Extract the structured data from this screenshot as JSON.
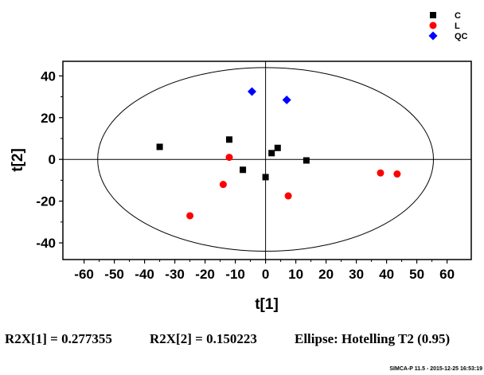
{
  "chart_data": {
    "type": "scatter",
    "xlabel": "t[1]",
    "ylabel": "t[2]",
    "xlim": [
      -67,
      68
    ],
    "ylim": [
      -48,
      47
    ],
    "xticks": [
      -60,
      -50,
      -40,
      -30,
      -20,
      -10,
      0,
      10,
      20,
      30,
      40,
      50,
      60
    ],
    "yticks": [
      -40,
      -20,
      0,
      20,
      40
    ],
    "grid": false,
    "legend_position": "top-right",
    "ellipse": {
      "center": [
        0,
        0
      ],
      "semi_x": 55.5,
      "semi_y": 44
    },
    "series": [
      {
        "name": "C",
        "color": "#000000",
        "marker": "square",
        "points": [
          [
            -35,
            6
          ],
          [
            -12,
            9.5
          ],
          [
            -7.5,
            -5
          ],
          [
            0,
            -8.5
          ],
          [
            2,
            3
          ],
          [
            4,
            5.5
          ],
          [
            13.5,
            -0.5
          ]
        ]
      },
      {
        "name": "L",
        "color": "#ff0000",
        "marker": "circle",
        "points": [
          [
            -25,
            -27
          ],
          [
            -14,
            -12
          ],
          [
            -12,
            1
          ],
          [
            7.5,
            -17.5
          ],
          [
            38,
            -6.5
          ],
          [
            43.5,
            -7
          ]
        ]
      },
      {
        "name": "QC",
        "color": "#0000ff",
        "marker": "diamond",
        "points": [
          [
            -4.5,
            32.5
          ],
          [
            7,
            28.5
          ]
        ]
      }
    ]
  },
  "stats": {
    "r2x1": "R2X[1] = 0.277355",
    "r2x2": "R2X[2] = 0.150223",
    "ellipse": "Ellipse: Hotelling T2 (0.95)"
  },
  "footer": "SIMCA-P 11.5 - 2015-12-25 16:53:19"
}
